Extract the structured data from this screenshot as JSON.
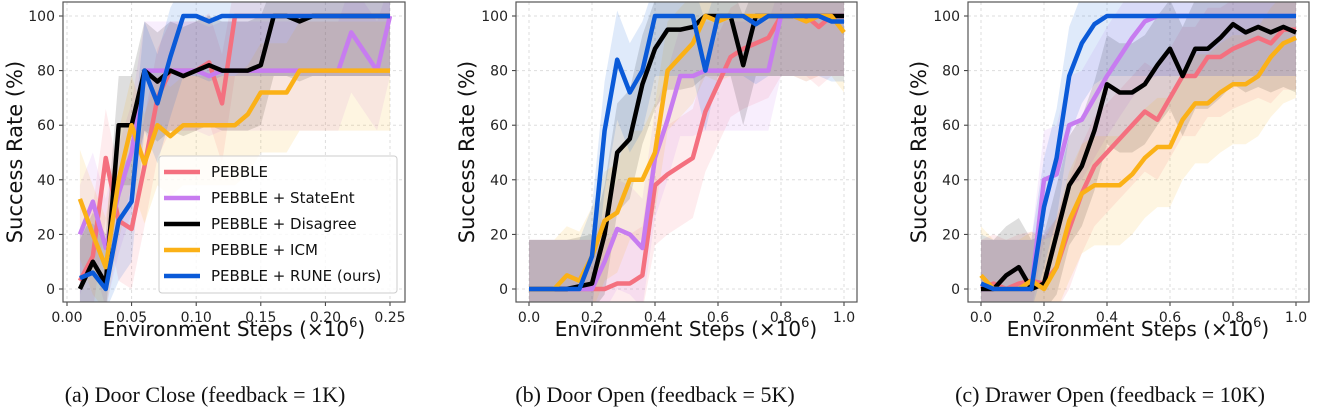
{
  "legend": [
    "PEBBLE",
    "PEBBLE + StateEnt",
    "PEBBLE + Disagree",
    "PEBBLE + ICM",
    "PEBBLE + RUNE (ours)"
  ],
  "colors": [
    "#f4707f",
    "#c77cf0",
    "#000000",
    "#fbb117",
    "#0a5ad8"
  ],
  "chart_data": [
    {
      "type": "line",
      "caption": "(a)  Door Close (feedback = 1K)",
      "xlabel": "Environment Steps (×10",
      "xlabel_exp": "6",
      "xlabel_close": ")",
      "ylabel": "Success Rate (%)",
      "xlim": [
        0.0,
        0.25
      ],
      "ylim": [
        0,
        100
      ],
      "xticks": [
        "0.00",
        "0.05",
        "0.10",
        "0.15",
        "0.20",
        "0.25"
      ],
      "xtick_values": [
        0,
        0.05,
        0.1,
        0.15,
        0.2,
        0.25
      ],
      "yticks": [
        "0",
        "20",
        "40",
        "60",
        "80",
        "100"
      ],
      "ytick_values": [
        0,
        20,
        40,
        60,
        80,
        100
      ],
      "legend_position": "lower-right",
      "x": [
        0.01,
        0.02,
        0.03,
        0.04,
        0.05,
        0.06,
        0.07,
        0.08,
        0.09,
        0.1,
        0.11,
        0.12,
        0.13,
        0.14,
        0.15,
        0.16,
        0.17,
        0.18,
        0.19,
        0.2,
        0.21,
        0.22,
        0.23,
        0.24,
        0.25
      ],
      "series": [
        {
          "name": "PEBBLE",
          "values": [
            3,
            12,
            48,
            25,
            22,
            45,
            70,
            80,
            80,
            80,
            83,
            68,
            100,
            100,
            100,
            100,
            100,
            100,
            100,
            100,
            100,
            100,
            100,
            100,
            100
          ]
        },
        {
          "name": "PEBBLE + StateEnt",
          "values": [
            20,
            32,
            15,
            35,
            50,
            80,
            80,
            80,
            80,
            80,
            78,
            80,
            80,
            80,
            80,
            80,
            80,
            80,
            80,
            80,
            80,
            94,
            87,
            80,
            100
          ]
        },
        {
          "name": "PEBBLE + Disagree",
          "values": [
            0,
            10,
            2,
            60,
            60,
            80,
            76,
            80,
            78,
            80,
            82,
            80,
            80,
            80,
            82,
            100,
            100,
            98,
            100,
            100,
            100,
            100,
            100,
            100,
            100
          ]
        },
        {
          "name": "PEBBLE + ICM",
          "values": [
            33,
            20,
            8,
            40,
            60,
            46,
            60,
            56,
            60,
            60,
            60,
            60,
            60,
            64,
            72,
            72,
            72,
            80,
            80,
            80,
            80,
            80,
            80,
            80,
            80
          ]
        },
        {
          "name": "PEBBLE + RUNE (ours)",
          "values": [
            4,
            6,
            0,
            25,
            32,
            80,
            68,
            85,
            100,
            100,
            98,
            100,
            100,
            100,
            100,
            100,
            100,
            100,
            100,
            100,
            100,
            100,
            100,
            100,
            100
          ]
        }
      ]
    },
    {
      "type": "line",
      "caption": "(b)  Door Open (feedback = 5K)",
      "xlabel": "Environment Steps (×10",
      "xlabel_exp": "6",
      "xlabel_close": ")",
      "ylabel": "Success Rate (%)",
      "xlim": [
        0.0,
        1.0
      ],
      "ylim": [
        0,
        100
      ],
      "xticks": [
        "0.0",
        "0.2",
        "0.4",
        "0.6",
        "0.8",
        "1.0"
      ],
      "xtick_values": [
        0,
        0.2,
        0.4,
        0.6,
        0.8,
        1.0
      ],
      "yticks": [
        "0",
        "20",
        "40",
        "60",
        "80",
        "100"
      ],
      "ytick_values": [
        0,
        20,
        40,
        60,
        80,
        100
      ],
      "x": [
        0,
        0.04,
        0.08,
        0.12,
        0.16,
        0.2,
        0.24,
        0.28,
        0.32,
        0.36,
        0.4,
        0.44,
        0.48,
        0.52,
        0.56,
        0.6,
        0.64,
        0.68,
        0.72,
        0.76,
        0.8,
        0.84,
        0.88,
        0.92,
        0.96,
        1.0
      ],
      "series": [
        {
          "name": "PEBBLE",
          "values": [
            0,
            0,
            0,
            0,
            0,
            0,
            0,
            2,
            2,
            5,
            38,
            42,
            45,
            48,
            65,
            75,
            85,
            88,
            90,
            92,
            100,
            100,
            100,
            96,
            100,
            100
          ]
        },
        {
          "name": "PEBBLE + StateEnt",
          "values": [
            0,
            0,
            0,
            0,
            0,
            0,
            10,
            22,
            20,
            15,
            48,
            62,
            78,
            78,
            80,
            80,
            80,
            80,
            80,
            80,
            100,
            100,
            98,
            100,
            100,
            100
          ]
        },
        {
          "name": "PEBBLE + Disagree",
          "values": [
            0,
            0,
            0,
            0,
            1,
            2,
            20,
            50,
            55,
            75,
            88,
            95,
            95,
            96,
            100,
            100,
            100,
            82,
            100,
            100,
            100,
            100,
            100,
            100,
            100,
            100
          ]
        },
        {
          "name": "PEBBLE + ICM",
          "values": [
            0,
            0,
            0,
            5,
            3,
            12,
            25,
            28,
            40,
            40,
            50,
            80,
            85,
            90,
            100,
            98,
            100,
            100,
            100,
            100,
            100,
            100,
            98,
            100,
            100,
            94
          ]
        },
        {
          "name": "PEBBLE + RUNE (ours)",
          "values": [
            0,
            0,
            0,
            0,
            0,
            12,
            58,
            84,
            72,
            80,
            100,
            100,
            100,
            100,
            80,
            100,
            100,
            100,
            97,
            100,
            100,
            100,
            100,
            100,
            98,
            98
          ]
        }
      ]
    },
    {
      "type": "line",
      "caption": "(c)  Drawer Open (feedback = 10K)",
      "xlabel": "Environment Steps (×10",
      "xlabel_exp": "6",
      "xlabel_close": ")",
      "ylabel": "Success Rate (%)",
      "xlim": [
        0.0,
        1.0
      ],
      "ylim": [
        0,
        100
      ],
      "xticks": [
        "0.0",
        "0.2",
        "0.4",
        "0.6",
        "0.8",
        "1.0"
      ],
      "xtick_values": [
        0,
        0.2,
        0.4,
        0.6,
        0.8,
        1.0
      ],
      "yticks": [
        "0",
        "20",
        "40",
        "60",
        "80",
        "100"
      ],
      "ytick_values": [
        0,
        20,
        40,
        60,
        80,
        100
      ],
      "x": [
        0,
        0.04,
        0.08,
        0.12,
        0.16,
        0.2,
        0.24,
        0.28,
        0.32,
        0.36,
        0.4,
        0.44,
        0.48,
        0.52,
        0.56,
        0.6,
        0.64,
        0.68,
        0.72,
        0.76,
        0.8,
        0.84,
        0.88,
        0.92,
        0.96,
        1.0
      ],
      "series": [
        {
          "name": "PEBBLE",
          "values": [
            0,
            2,
            0,
            2,
            3,
            2,
            8,
            22,
            35,
            45,
            50,
            55,
            60,
            65,
            62,
            70,
            78,
            78,
            85,
            85,
            88,
            90,
            92,
            90,
            95,
            95
          ]
        },
        {
          "name": "PEBBLE + StateEnt",
          "values": [
            0,
            0,
            0,
            0,
            0,
            40,
            42,
            60,
            62,
            70,
            78,
            85,
            92,
            98,
            100,
            100,
            100,
            100,
            100,
            100,
            100,
            100,
            100,
            100,
            100,
            100
          ]
        },
        {
          "name": "PEBBLE + Disagree",
          "values": [
            0,
            0,
            5,
            8,
            0,
            2,
            20,
            38,
            45,
            58,
            75,
            72,
            72,
            75,
            82,
            88,
            78,
            88,
            88,
            92,
            97,
            94,
            96,
            94,
            96,
            94
          ]
        },
        {
          "name": "PEBBLE + ICM",
          "values": [
            5,
            0,
            0,
            0,
            3,
            0,
            8,
            25,
            35,
            38,
            38,
            38,
            42,
            48,
            52,
            52,
            62,
            68,
            68,
            72,
            75,
            75,
            78,
            85,
            90,
            92
          ]
        },
        {
          "name": "PEBBLE + RUNE (ours)",
          "values": [
            2,
            0,
            0,
            0,
            0,
            30,
            48,
            78,
            90,
            97,
            100,
            100,
            100,
            100,
            100,
            100,
            100,
            100,
            100,
            100,
            100,
            100,
            100,
            100,
            100,
            100
          ]
        }
      ]
    }
  ]
}
